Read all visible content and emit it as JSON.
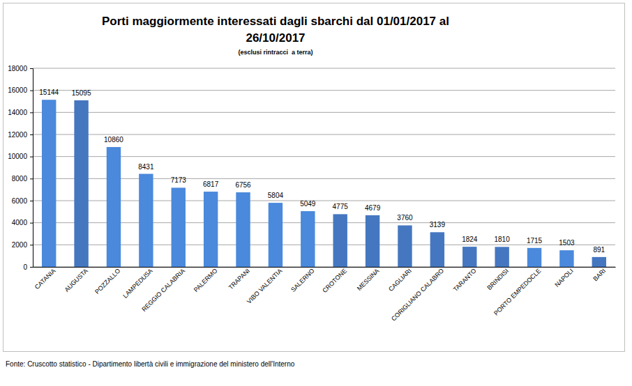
{
  "chart_data": {
    "type": "bar",
    "title": "Porti maggiormente interessati dagli sbarchi dal 01/01/2017 al 26/10/2017",
    "subtitle": "(esclusi rintracci  a terra)",
    "source": "Fonte: Cruscotto statistico - Dipartimento libertà civili e immigrazione del ministero dell'Interno",
    "categories": [
      "CATANIA",
      "AUGUSTA",
      "POZZALLO",
      "LAMPEDUSA",
      "REGGIO CALABRIA",
      "PALERMO",
      "TRAPANI",
      "VIBO VALENTIA",
      "SALERNO",
      "CROTONE",
      "MESSINA",
      "CAGLIARI",
      "CORIGLIANO CALABRO",
      "TARANTO",
      "BRINDISI",
      "PORTO EMPEDOCLE",
      "NAPOLI",
      "BARI"
    ],
    "values": [
      15144,
      15095,
      10860,
      8431,
      7173,
      6817,
      6756,
      5804,
      5049,
      4775,
      4679,
      3760,
      3139,
      1824,
      1810,
      1715,
      1503,
      891
    ],
    "colors": [
      "#4a89dc",
      "#4577c0",
      "#4a89dc",
      "#4a89dc",
      "#4a89dc",
      "#4a89dc",
      "#4a89dc",
      "#4a89dc",
      "#4a89dc",
      "#4577c0",
      "#4577c0",
      "#4577c0",
      "#4577c0",
      "#4577c0",
      "#4577c0",
      "#4a89dc",
      "#4a89dc",
      "#4577c0"
    ],
    "ylim": [
      0,
      18000
    ],
    "yticks": [
      0,
      2000,
      4000,
      6000,
      8000,
      10000,
      12000,
      14000,
      16000,
      18000
    ],
    "grid": true,
    "data_labels": true
  }
}
